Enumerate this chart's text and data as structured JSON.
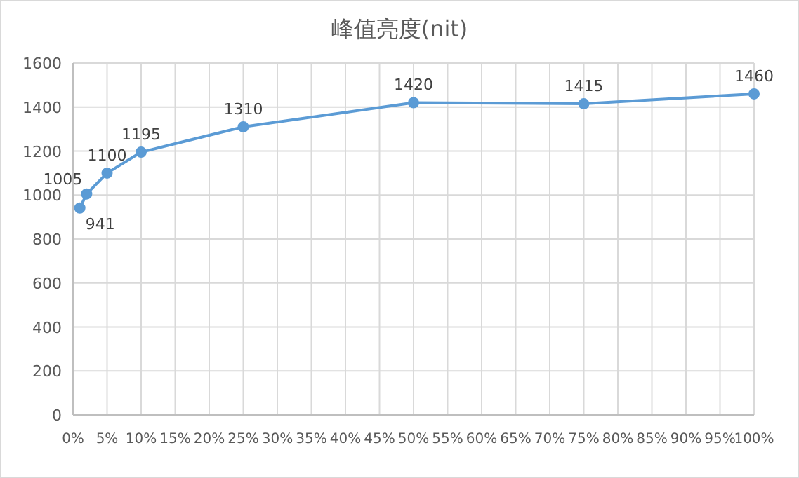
{
  "chart_data": {
    "type": "line",
    "title": "峰值亮度(nit)",
    "x": [
      1,
      2,
      5,
      10,
      25,
      50,
      75,
      100
    ],
    "series": [
      {
        "color": "#5b9bd5",
        "values": [
          941,
          1005,
          1100,
          1195,
          1310,
          1420,
          1415,
          1460
        ]
      }
    ],
    "xlim": [
      0,
      100
    ],
    "xticks": [
      {
        "value": 0,
        "label": "0%"
      },
      {
        "value": 5,
        "label": "5%"
      },
      {
        "value": 10,
        "label": "10%"
      },
      {
        "value": 15,
        "label": "15%"
      },
      {
        "value": 20,
        "label": "20%"
      },
      {
        "value": 25,
        "label": "25%"
      },
      {
        "value": 30,
        "label": "30%"
      },
      {
        "value": 35,
        "label": "35%"
      },
      {
        "value": 40,
        "label": "40%"
      },
      {
        "value": 45,
        "label": "45%"
      },
      {
        "value": 50,
        "label": "50%"
      },
      {
        "value": 55,
        "label": "55%"
      },
      {
        "value": 60,
        "label": "60%"
      },
      {
        "value": 65,
        "label": "65%"
      },
      {
        "value": 70,
        "label": "70%"
      },
      {
        "value": 75,
        "label": "75%"
      },
      {
        "value": 80,
        "label": "80%"
      },
      {
        "value": 85,
        "label": "85%"
      },
      {
        "value": 90,
        "label": "90%"
      },
      {
        "value": 95,
        "label": "95%"
      },
      {
        "value": 100,
        "label": "100%"
      }
    ],
    "ylim": [
      0,
      1600
    ],
    "yticks": [
      0,
      200,
      400,
      600,
      800,
      1000,
      1200,
      1400,
      1600
    ],
    "grid": true,
    "marker": "circle",
    "data_labels": true
  }
}
